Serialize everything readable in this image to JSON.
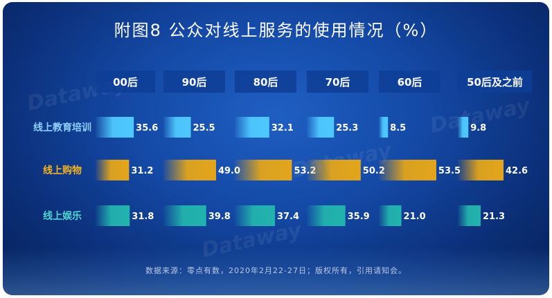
{
  "title": "附图8 公众对线上服务的使用情况（%）",
  "source": "数据来源：零点有数，2020年2月22-27日；版权所有，引用请知会。",
  "watermark": "Dataway",
  "colors": {
    "background": "#1449a6",
    "header_fill": "#0e3e96",
    "label_default": "#8fd0ff",
    "label_highlight": "#f3b31f",
    "label_entertainment": "#4fd4d0",
    "value_text": "#ffffff"
  },
  "chart_data": {
    "type": "bar",
    "title": "附图8 公众对线上服务的使用情况（%）",
    "unit": "%",
    "categories": [
      "00后",
      "90后",
      "80后",
      "70后",
      "60后",
      "50后及之前"
    ],
    "series": [
      {
        "name": "线上教育培训",
        "color": "#4fc8ff",
        "values": [
          35.6,
          25.5,
          32.1,
          25.3,
          8.5,
          9.8
        ]
      },
      {
        "name": "线上购物",
        "color": "#e3a51b",
        "values": [
          31.2,
          49.0,
          53.2,
          50.2,
          53.5,
          42.6
        ]
      },
      {
        "name": "线上娱乐",
        "color": "#22b3ad",
        "values": [
          31.8,
          39.8,
          37.4,
          35.9,
          21.0,
          21.3
        ]
      }
    ],
    "value_labels": [
      [
        "35.6",
        "25.5",
        "32.1",
        "25.3",
        "8.5",
        "9.8"
      ],
      [
        "31.2",
        "49.0",
        "53.2",
        "50.2",
        "53.5",
        "42.6"
      ],
      [
        "31.8",
        "39.8",
        "37.4",
        "35.9",
        "21.0",
        "21.3"
      ]
    ],
    "ylim": [
      0,
      100
    ],
    "grid": false,
    "legend": "row labels on left"
  }
}
